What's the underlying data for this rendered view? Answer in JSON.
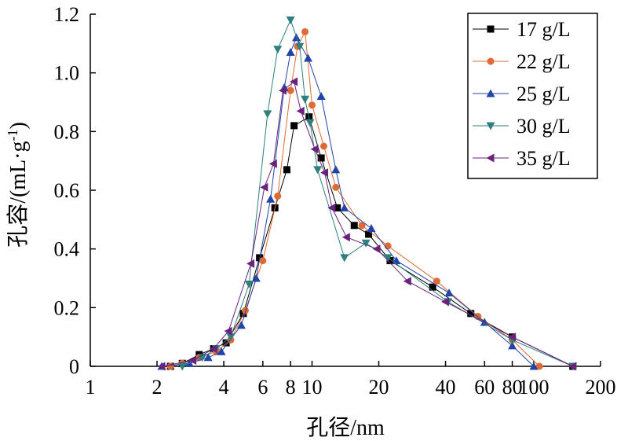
{
  "chart_data": {
    "type": "line",
    "xlabel": "孔径/nm",
    "ylabel_main": "孔容/(mL·g",
    "ylabel_sup": "-1",
    "ylabel_end": ")",
    "x_scale": "log",
    "xlim": [
      1,
      200
    ],
    "ylim": [
      0,
      1.2
    ],
    "x_ticks": [
      1,
      2,
      4,
      6,
      8,
      10,
      20,
      40,
      60,
      80,
      100,
      200
    ],
    "x_tick_labels": [
      "1",
      "2",
      "4",
      "6",
      "8",
      "10",
      "20",
      "40",
      "60",
      "80",
      "100",
      "200"
    ],
    "y_ticks": [
      0,
      0.2,
      0.4,
      0.6,
      0.8,
      1.0,
      1.2
    ],
    "y_tick_labels": [
      "0",
      "0.2",
      "0.4",
      "0.6",
      "0.8",
      "1.0",
      "1.2"
    ],
    "grid": false,
    "legend_position": "top-right",
    "series": [
      {
        "name": "17 g/L",
        "color": "#000000",
        "marker": "square",
        "x": [
          2.3,
          2.6,
          3.1,
          3.6,
          4.1,
          4.9,
          5.8,
          6.8,
          7.7,
          8.3,
          9.7,
          11.0,
          13.0,
          15.5,
          18.0,
          22.5,
          35.0,
          52.0,
          80.0,
          150.0
        ],
        "y": [
          0.0,
          0.01,
          0.04,
          0.06,
          0.08,
          0.18,
          0.37,
          0.54,
          0.67,
          0.82,
          0.85,
          0.71,
          0.54,
          0.48,
          0.45,
          0.36,
          0.27,
          0.18,
          0.1,
          0.0
        ]
      },
      {
        "name": "22 g/L",
        "color": "#E06A35",
        "marker": "circle",
        "x": [
          2.3,
          2.6,
          3.1,
          3.7,
          4.3,
          5.0,
          6.0,
          7.0,
          8.0,
          8.6,
          9.3,
          10.0,
          11.3,
          12.8,
          16.8,
          22.0,
          36.5,
          56.0,
          80.0,
          106.0
        ],
        "y": [
          0.0,
          0.01,
          0.03,
          0.05,
          0.09,
          0.19,
          0.36,
          0.58,
          0.94,
          1.09,
          1.14,
          0.89,
          0.75,
          0.61,
          0.48,
          0.41,
          0.29,
          0.17,
          0.09,
          0.0
        ]
      },
      {
        "name": "25 g/L",
        "color": "#2244A8",
        "marker": "triangle-up",
        "x": [
          2.1,
          2.8,
          3.4,
          3.9,
          4.8,
          5.6,
          6.5,
          7.5,
          8.0,
          8.5,
          9.6,
          11.0,
          12.8,
          14.0,
          18.5,
          24.0,
          41.5,
          60.0,
          80.0,
          100.0
        ],
        "y": [
          0.0,
          0.01,
          0.03,
          0.05,
          0.14,
          0.3,
          0.57,
          0.95,
          1.07,
          1.12,
          1.05,
          0.92,
          0.67,
          0.54,
          0.47,
          0.36,
          0.25,
          0.15,
          0.07,
          0.0
        ]
      },
      {
        "name": "30 g/L",
        "color": "#2E7F7E",
        "marker": "triangle-down",
        "x": [
          2.6,
          3.2,
          3.7,
          4.3,
          5.2,
          6.3,
          7.0,
          8.0,
          8.8,
          9.3,
          9.8,
          10.6,
          14.0,
          17.5,
          22.0,
          41.0,
          80.0,
          150.0
        ],
        "y": [
          0.0,
          0.03,
          0.06,
          0.1,
          0.28,
          0.86,
          1.08,
          1.18,
          1.09,
          0.91,
          0.83,
          0.67,
          0.37,
          0.42,
          0.37,
          0.22,
          0.09,
          0.0
        ]
      },
      {
        "name": "35 g/L",
        "color": "#6A237D",
        "marker": "triangle-left",
        "x": [
          2.1,
          2.9,
          3.6,
          4.2,
          5.3,
          6.1,
          6.7,
          7.4,
          8.3,
          8.9,
          10.3,
          11.4,
          12.3,
          14.3,
          19.6,
          27.0,
          40.0,
          80.0,
          150.0
        ],
        "y": [
          0.0,
          0.02,
          0.06,
          0.12,
          0.35,
          0.61,
          0.69,
          0.94,
          0.97,
          0.87,
          0.74,
          0.66,
          0.54,
          0.44,
          0.4,
          0.29,
          0.22,
          0.1,
          0.0
        ]
      }
    ]
  }
}
